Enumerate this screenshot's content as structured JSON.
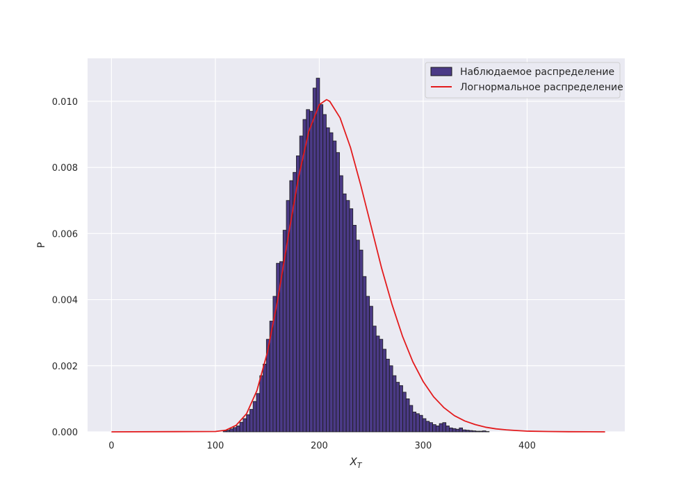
{
  "chart_data": {
    "type": "bar",
    "title": "",
    "xlabel": "X",
    "xlabel_subscript": "T",
    "ylabel": "P",
    "xlim": [
      -23,
      494
    ],
    "ylim": [
      0,
      0.0113
    ],
    "xticks": [
      0,
      100,
      200,
      300,
      400
    ],
    "yticks": [
      0.0,
      0.002,
      0.004,
      0.006,
      0.008,
      0.01
    ],
    "ytick_labels": [
      "0.000",
      "0.002",
      "0.004",
      "0.006",
      "0.008",
      "0.010"
    ],
    "grid": true,
    "legend": "top-right",
    "series": [
      {
        "name": "Наблюдаемое распределение",
        "kind": "histogram",
        "color": "#4b3a86",
        "edge_color": "#1a1a1a",
        "bin_width": 3.2,
        "bin_start": 107.5,
        "values": [
          3e-05,
          5e-05,
          9e-05,
          0.00013,
          0.00018,
          0.00029,
          0.0004,
          0.00052,
          0.00068,
          0.00092,
          0.00116,
          0.0017,
          0.00205,
          0.0028,
          0.00335,
          0.0041,
          0.0051,
          0.00515,
          0.0061,
          0.007,
          0.0076,
          0.00785,
          0.00835,
          0.00895,
          0.00945,
          0.00975,
          0.0097,
          0.0104,
          0.0107,
          0.0099,
          0.0096,
          0.0092,
          0.00905,
          0.0088,
          0.00845,
          0.00775,
          0.0072,
          0.007,
          0.00675,
          0.00625,
          0.0058,
          0.0055,
          0.0047,
          0.0041,
          0.0038,
          0.0032,
          0.0029,
          0.0028,
          0.0025,
          0.0022,
          0.002,
          0.0017,
          0.0015,
          0.0014,
          0.0012,
          0.001,
          0.0008,
          0.0006,
          0.00055,
          0.0005,
          0.0004,
          0.00032,
          0.00028,
          0.00022,
          0.00018,
          0.00025,
          0.00028,
          0.00018,
          0.00012,
          0.0001,
          8e-05,
          0.00012,
          6e-05,
          5e-05,
          4e-05,
          3e-05,
          2e-05,
          2e-05,
          3e-05,
          1e-05
        ]
      },
      {
        "name": "Логнормальное распределение",
        "kind": "line",
        "color": "#e31a1c",
        "x": [
          0,
          100,
          110,
          120,
          130,
          140,
          150,
          160,
          170,
          180,
          190,
          200,
          207,
          210,
          220,
          230,
          240,
          250,
          260,
          270,
          280,
          290,
          300,
          310,
          320,
          330,
          340,
          350,
          360,
          370,
          380,
          390,
          400,
          420,
          440,
          460,
          475
        ],
        "values": [
          0.0,
          1e-05,
          5e-05,
          0.0002,
          0.00055,
          0.00125,
          0.0024,
          0.004,
          0.0059,
          0.0077,
          0.0091,
          0.0099,
          0.01005,
          0.01,
          0.0095,
          0.0086,
          0.00745,
          0.0062,
          0.00495,
          0.00385,
          0.0029,
          0.00212,
          0.00152,
          0.00106,
          0.00073,
          0.00049,
          0.00033,
          0.00022,
          0.00014,
          9e-05,
          6e-05,
          4e-05,
          2e-05,
          1e-05,
          4e-06,
          2e-06,
          1e-06
        ]
      }
    ]
  }
}
